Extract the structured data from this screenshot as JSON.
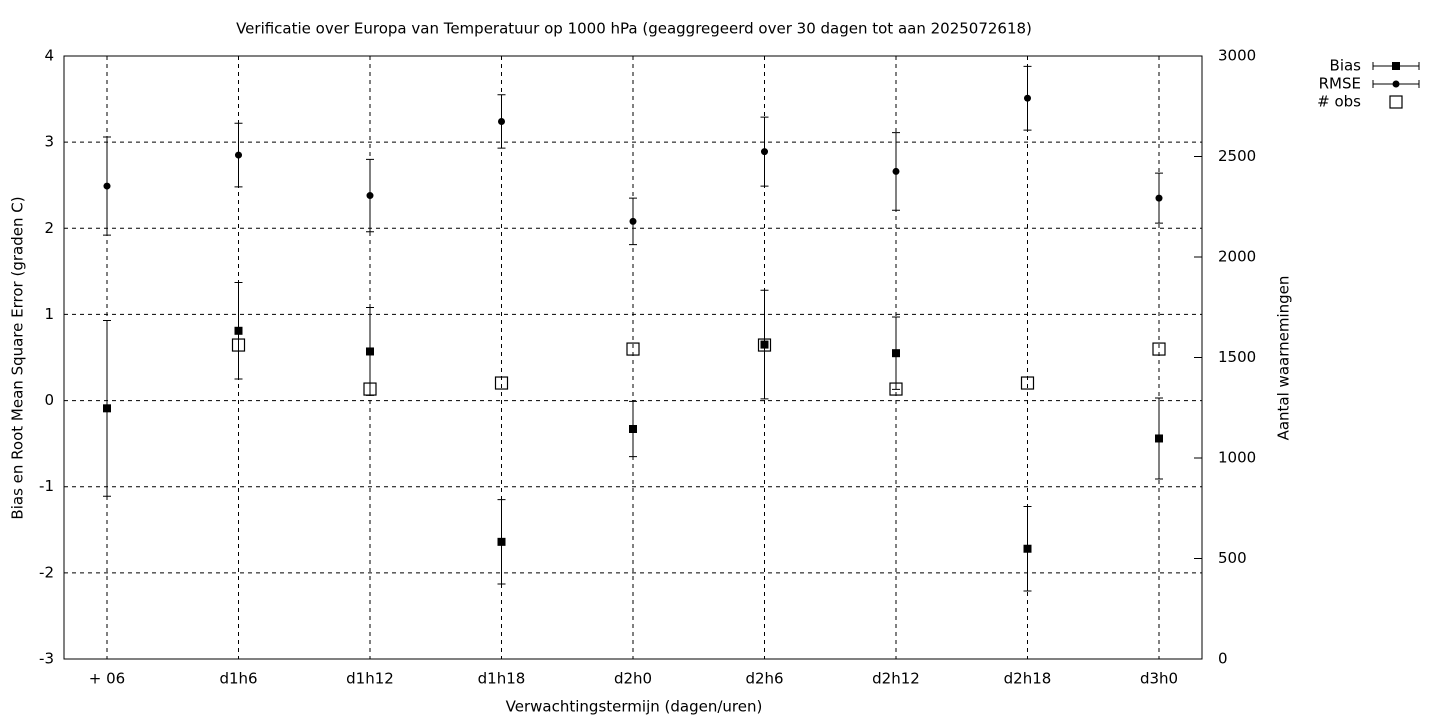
{
  "chart_data": {
    "type": "errorbar",
    "title": "Verificatie over Europa van Temperatuur op 1000 hPa (geaggregeerd over 30 dagen tot aan 2025072618)",
    "x_label": "Verwachtingstermijn (dagen/uren)",
    "y_label": "Bias en Root Mean Square Error (graden C)",
    "y2_label": "Aantal waarnemingen",
    "categories": [
      "+ 06",
      "d1h6",
      "d1h12",
      "d1h18",
      "d2h0",
      "d2h6",
      "d2h12",
      "d2h18",
      "d3h0"
    ],
    "series": [
      {
        "name": "Bias",
        "color": "#000000",
        "marker": "square",
        "values": [
          -0.09,
          0.81,
          0.57,
          -1.64,
          -0.33,
          0.65,
          0.55,
          -1.72,
          -0.44
        ],
        "errors": [
          1.02,
          0.56,
          0.51,
          0.49,
          0.32,
          0.63,
          0.42,
          0.49,
          0.47
        ]
      },
      {
        "name": "RMSE",
        "color": "#000000",
        "marker": "circle",
        "values": [
          2.49,
          2.85,
          2.38,
          3.24,
          2.08,
          2.89,
          2.66,
          3.51,
          2.35
        ],
        "errors": [
          0.57,
          0.37,
          0.42,
          0.31,
          0.27,
          0.4,
          0.45,
          0.37,
          0.29
        ]
      },
      {
        "name": "# obs",
        "color": "#000000",
        "marker": "open-square",
        "axis": "y2",
        "values": [
          null,
          1562,
          1343,
          1373,
          1542,
          1562,
          1343,
          1373,
          1542
        ]
      }
    ],
    "ylim": [
      -3,
      4
    ],
    "yticks": [
      -3,
      -2,
      -1,
      0,
      1,
      2,
      3,
      4
    ],
    "y2lim": [
      0,
      3000
    ],
    "y2ticks": [
      0,
      500,
      1000,
      1500,
      2000,
      2500,
      3000
    ],
    "grid": true
  }
}
